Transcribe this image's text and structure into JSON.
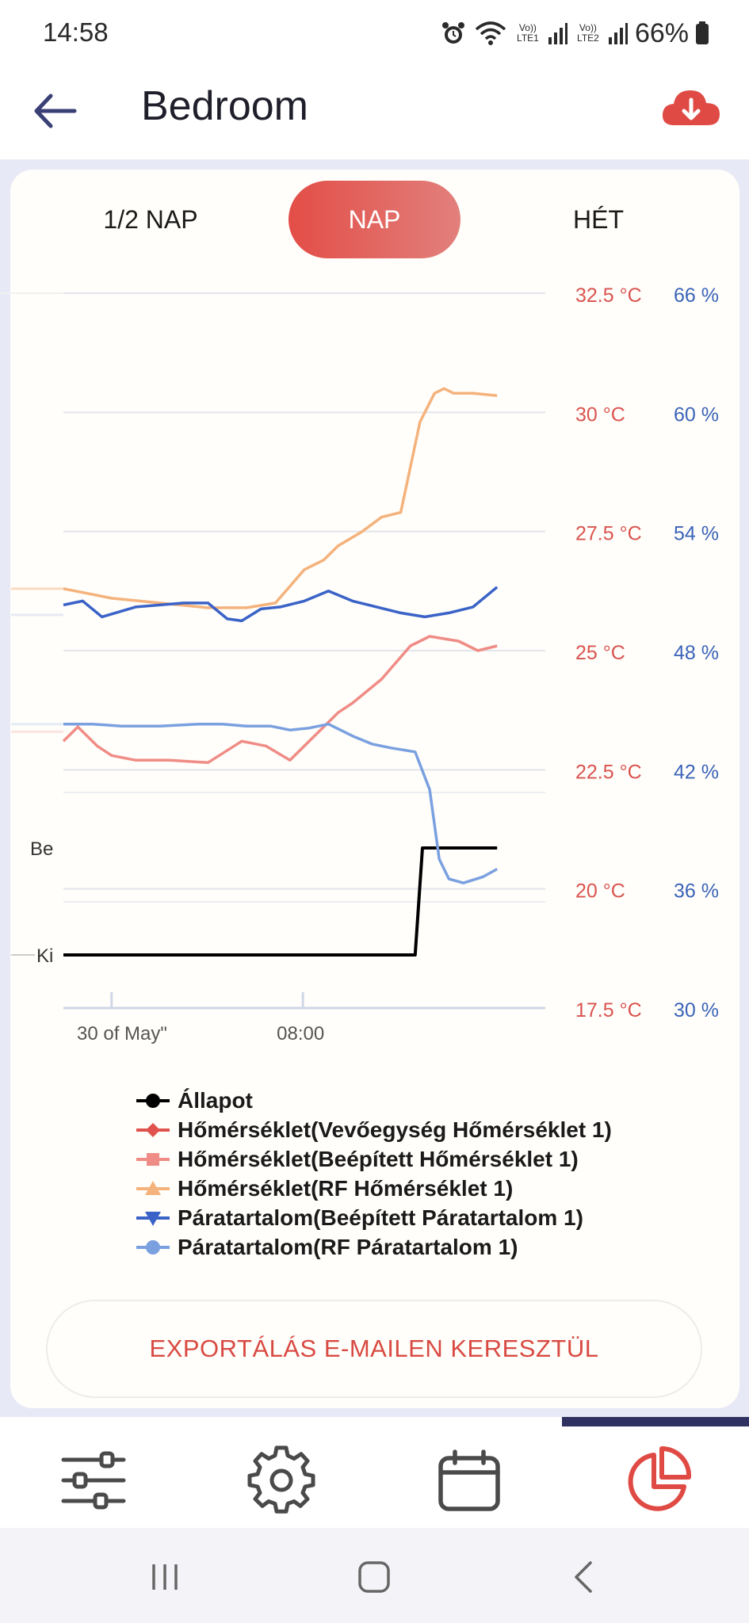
{
  "status_bar": {
    "time": "14:58",
    "battery": "66%",
    "sim1": "Vo)) LTE1",
    "sim2": "Vo)) LTE2",
    "icons": [
      "alarm-icon",
      "wifi-icon",
      "signal-icon",
      "signal-icon",
      "battery-icon"
    ]
  },
  "header": {
    "title": "Bedroom",
    "back_icon": "arrow-left-icon",
    "action_icon": "cloud-download-icon",
    "accent": "#e04a44"
  },
  "tabs": [
    {
      "label": "1/2 NAP",
      "active": false
    },
    {
      "label": "NAP",
      "active": true
    },
    {
      "label": "HÉT",
      "active": false
    }
  ],
  "chart_data": {
    "type": "line",
    "state_labels": [
      "Be",
      "Ki"
    ],
    "x_ticks": [
      "30 of May\"",
      "08:00"
    ],
    "y_left_ticks": [
      "32.5 °C",
      "30 °C",
      "27.5 °C",
      "25 °C",
      "22.5 °C",
      "20 °C",
      "17.5 °C"
    ],
    "y_right_ticks": [
      "66 %",
      "60 %",
      "54 %",
      "48 %",
      "42 %",
      "36 %",
      "30 %"
    ],
    "y_left_range": [
      17.5,
      32.5
    ],
    "y_right_range": [
      30,
      66
    ],
    "colors": {
      "temp_axis": "#d9534f",
      "humidity_axis": "#3b63b8"
    },
    "series": [
      {
        "name": "Állapot",
        "color": "#000000",
        "marker": "circle",
        "axis": "state",
        "x": [
          0,
          0.73,
          0.745,
          0.9
        ],
        "values": [
          0,
          0,
          1,
          1
        ]
      },
      {
        "name": "Hőmérséklet(Vevőegység Hőmérséklet 1)",
        "color": "#e0524d",
        "marker": "diamond",
        "axis": "temp",
        "x": [],
        "values": []
      },
      {
        "name": "Hőmérséklet(Beépített Hőmérséklet 1)",
        "color": "#f08c86",
        "marker": "square",
        "axis": "temp",
        "x": [
          0,
          0.03,
          0.07,
          0.1,
          0.15,
          0.22,
          0.3,
          0.37,
          0.42,
          0.47,
          0.52,
          0.57,
          0.6,
          0.66,
          0.72,
          0.76,
          0.82,
          0.86,
          0.9
        ],
        "values": [
          23.1,
          23.4,
          23.0,
          22.8,
          22.7,
          22.7,
          22.65,
          23.1,
          23.0,
          22.7,
          23.2,
          23.7,
          23.9,
          24.4,
          25.1,
          25.3,
          25.2,
          25.0,
          25.1
        ]
      },
      {
        "name": "Hőmérséklet(RF Hőmérséklet 1)",
        "color": "#f4b27c",
        "marker": "triangle-up",
        "axis": "temp",
        "x": [
          0,
          0.05,
          0.1,
          0.2,
          0.3,
          0.38,
          0.44,
          0.5,
          0.54,
          0.57,
          0.62,
          0.66,
          0.7,
          0.74,
          0.77,
          0.79,
          0.81,
          0.83,
          0.85,
          0.9
        ],
        "values": [
          26.3,
          26.2,
          26.1,
          26.0,
          25.9,
          25.9,
          26.0,
          26.7,
          26.9,
          27.2,
          27.5,
          27.8,
          27.9,
          29.8,
          30.4,
          30.5,
          30.4,
          30.4,
          30.4,
          30.35
        ]
      },
      {
        "name": "Páratartalom(Beépített Páratartalom 1)",
        "color": "#3a62c7",
        "marker": "triangle-down",
        "axis": "humidity",
        "x": [
          0,
          0.04,
          0.08,
          0.15,
          0.25,
          0.3,
          0.34,
          0.37,
          0.41,
          0.45,
          0.5,
          0.55,
          0.6,
          0.65,
          0.7,
          0.75,
          0.8,
          0.85,
          0.9
        ],
        "values": [
          50.3,
          50.5,
          49.7,
          50.2,
          50.4,
          50.4,
          49.6,
          49.5,
          50.1,
          50.2,
          50.5,
          51.0,
          50.5,
          50.2,
          49.9,
          49.7,
          49.9,
          50.2,
          51.2
        ]
      },
      {
        "name": "Páratartalom(RF Páratartalom 1)",
        "color": "#7aa0e0",
        "marker": "circle",
        "axis": "humidity",
        "x": [
          0,
          0.06,
          0.12,
          0.2,
          0.28,
          0.33,
          0.38,
          0.43,
          0.47,
          0.51,
          0.55,
          0.6,
          0.64,
          0.68,
          0.73,
          0.76,
          0.78,
          0.8,
          0.83,
          0.87,
          0.9
        ],
        "values": [
          44.3,
          44.3,
          44.2,
          44.2,
          44.3,
          44.3,
          44.2,
          44.2,
          44.0,
          44.1,
          44.3,
          43.7,
          43.3,
          43.1,
          42.9,
          41.0,
          37.5,
          36.5,
          36.3,
          36.6,
          37.0
        ]
      }
    ]
  },
  "export_button": "EXPORTÁLÁS E-MAILEN KERESZTÜL",
  "bottom_nav": [
    {
      "icon": "sliders-icon",
      "active": false
    },
    {
      "icon": "gear-icon",
      "active": false
    },
    {
      "icon": "calendar-icon",
      "active": false
    },
    {
      "icon": "pie-chart-icon",
      "active": true
    }
  ],
  "system_nav": [
    "recents-icon",
    "home-icon",
    "back-icon"
  ]
}
